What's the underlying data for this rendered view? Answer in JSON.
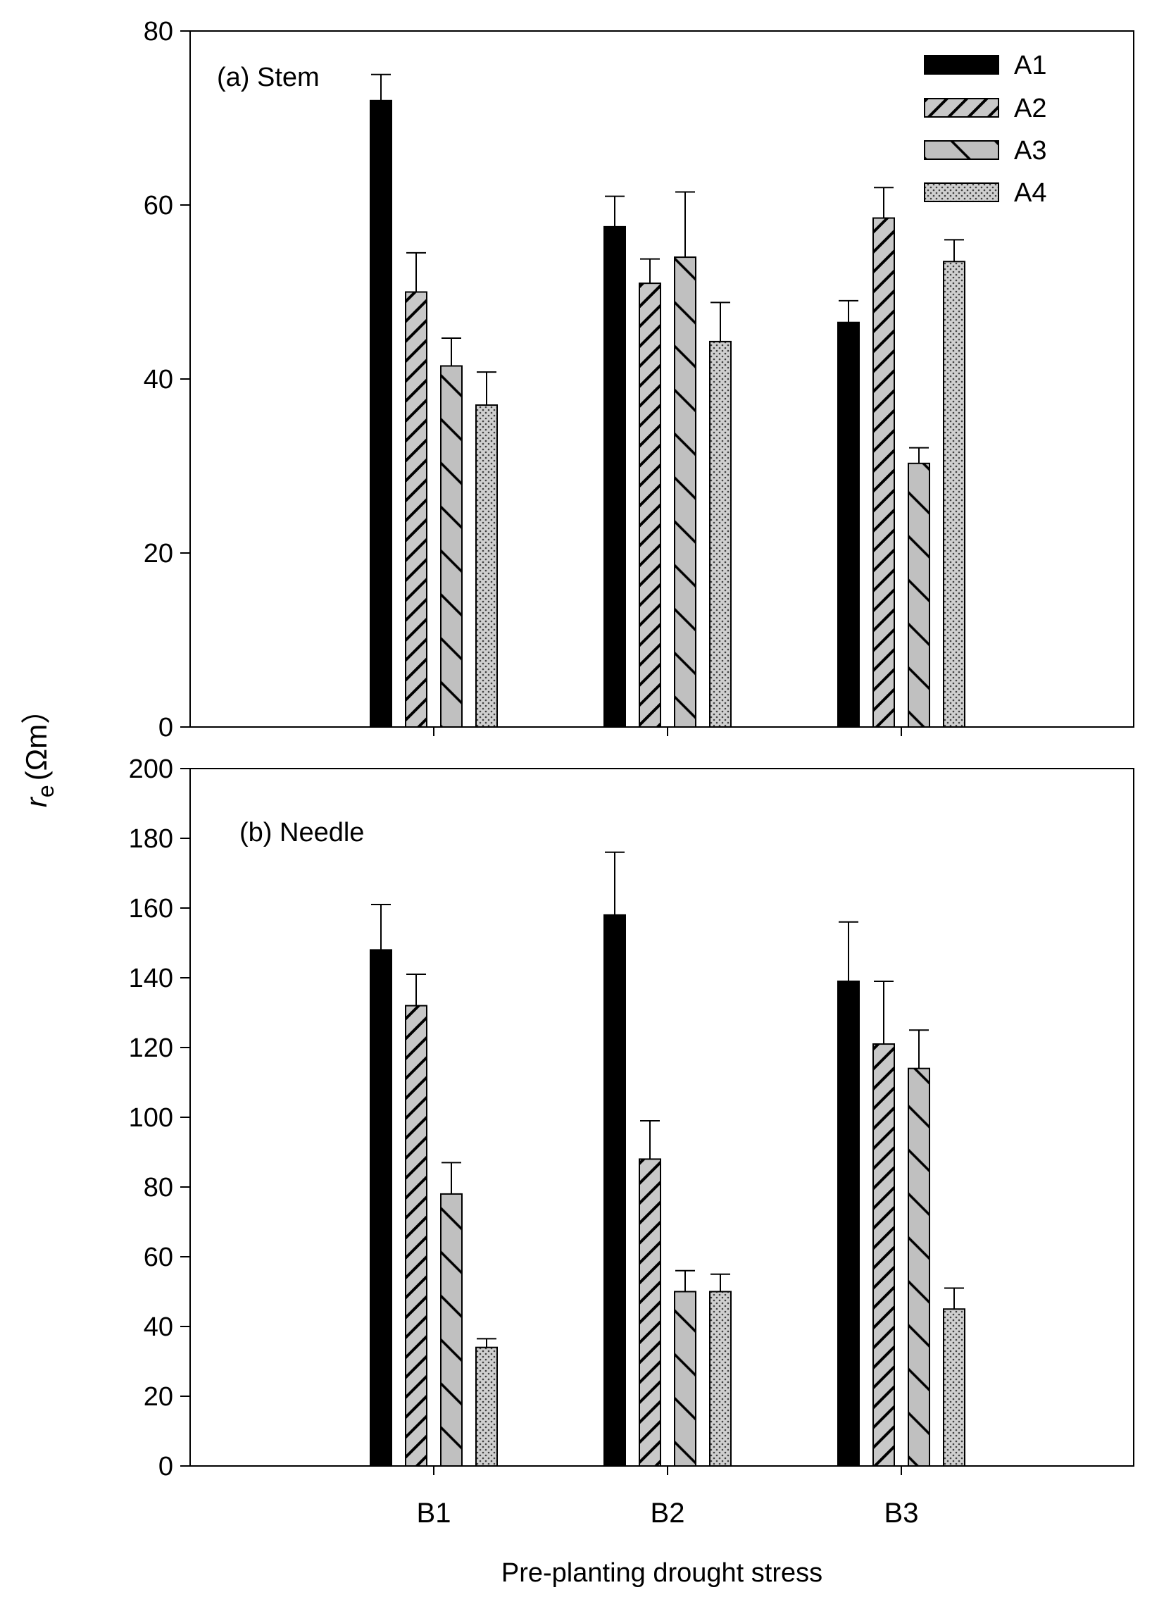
{
  "figure": {
    "y_axis_label_main": "r",
    "y_axis_label_sub": "e",
    "y_axis_label_unit": "(Ωm）",
    "x_axis_label": "Pre-planting drought stress"
  },
  "legend": {
    "entries": [
      {
        "label": "A1",
        "pattern": "solid-black"
      },
      {
        "label": "A2",
        "pattern": "diagonal-hatch"
      },
      {
        "label": "A3",
        "pattern": "backslash-grey"
      },
      {
        "label": "A4",
        "pattern": "dotted-grey"
      }
    ]
  },
  "chart_data": [
    {
      "type": "bar",
      "panel": "a",
      "title": "(a) Stem",
      "categories": [
        "B1",
        "B2",
        "B3"
      ],
      "series": [
        {
          "name": "A1",
          "values": [
            72,
            57.5,
            46.5
          ],
          "errors": [
            3,
            3.5,
            2.5
          ]
        },
        {
          "name": "A2",
          "values": [
            50,
            51,
            58.5
          ],
          "errors": [
            4.5,
            2.8,
            3.5
          ]
        },
        {
          "name": "A3",
          "values": [
            41.5,
            54,
            30.3
          ],
          "errors": [
            3.2,
            7.5,
            1.8
          ]
        },
        {
          "name": "A4",
          "values": [
            37,
            44.3,
            53.5
          ],
          "errors": [
            3.8,
            4.5,
            2.5
          ]
        }
      ],
      "ylim": [
        0,
        80
      ],
      "yticks": [
        "0",
        "20",
        "40",
        "60",
        "80"
      ],
      "ytick_values": [
        0,
        20,
        40,
        60,
        80
      ],
      "xlabel": "",
      "ylabel": "re (Ωm)",
      "legend_position": "top-right"
    },
    {
      "type": "bar",
      "panel": "b",
      "title": "(b) Needle",
      "categories": [
        "B1",
        "B2",
        "B3"
      ],
      "series": [
        {
          "name": "A1",
          "values": [
            148,
            158,
            139
          ],
          "errors": [
            13,
            18,
            17
          ]
        },
        {
          "name": "A2",
          "values": [
            132,
            88,
            121
          ],
          "errors": [
            9,
            11,
            18
          ]
        },
        {
          "name": "A3",
          "values": [
            78,
            50,
            114
          ],
          "errors": [
            9,
            6,
            11
          ]
        },
        {
          "name": "A4",
          "values": [
            34,
            50,
            45
          ],
          "errors": [
            2.5,
            5,
            6
          ]
        }
      ],
      "ylim": [
        0,
        200
      ],
      "yticks": [
        "0",
        "20",
        "40",
        "60",
        "80",
        "100",
        "120",
        "140",
        "160",
        "180",
        "200"
      ],
      "ytick_values": [
        0,
        20,
        40,
        60,
        80,
        100,
        120,
        140,
        160,
        180,
        200
      ],
      "xlabel": "Pre-planting drought stress",
      "ylabel": "re (Ωm)"
    }
  ]
}
